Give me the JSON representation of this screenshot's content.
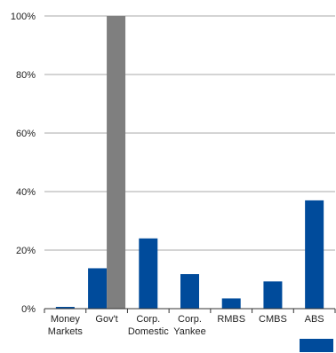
{
  "chart_data": {
    "type": "bar",
    "title": "",
    "xlabel": "",
    "ylabel": "",
    "categories": [
      "Money Markets",
      "Gov't",
      "Corp. Domestic",
      "Corp. Yankee",
      "RMBS",
      "CMBS",
      "ABS"
    ],
    "category_label_lines": [
      [
        "Money",
        "Markets"
      ],
      [
        "Gov't"
      ],
      [
        "Corp.",
        "Domestic"
      ],
      [
        "Corp.",
        "Yankee"
      ],
      [
        "RMBS"
      ],
      [
        "CMBS"
      ],
      [
        "ABS"
      ]
    ],
    "series": [
      {
        "color": "#004b9b",
        "values": [
          0.6,
          13.8,
          24.0,
          11.8,
          3.5,
          9.3,
          37.0
        ]
      },
      {
        "color": "#7f7f7f",
        "values": [
          null,
          100,
          null,
          null,
          null,
          null,
          null
        ]
      }
    ],
    "ylim": [
      0,
      100
    ],
    "yticks": [
      0,
      20,
      40,
      60,
      80,
      100
    ],
    "ytick_labels": [
      "0%",
      "20%",
      "40%",
      "60%",
      "80%",
      "100%"
    ],
    "grid": true,
    "legend_placement": "bottom-right",
    "legend_entries": [
      {
        "color": "#004b9b"
      }
    ]
  }
}
